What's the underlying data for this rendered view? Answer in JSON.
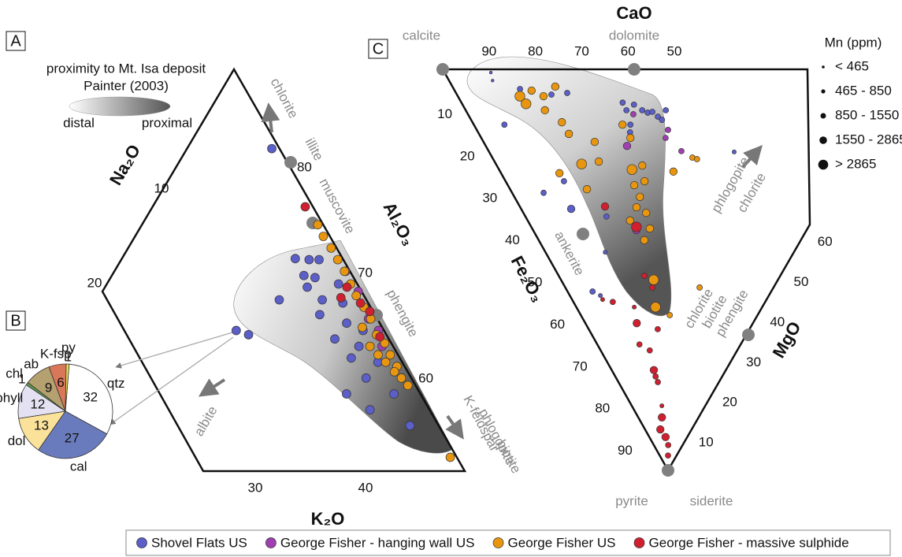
{
  "chart_data": [
    {
      "type": "ternary",
      "panel": "A",
      "axes": {
        "bottom": "K₂O",
        "left": "Na₂O",
        "right": "Al₂O₃"
      },
      "k2o_ticks": [
        30,
        40
      ],
      "na2o_ticks": [
        10,
        20
      ],
      "al2o3_ticks": [
        60,
        70,
        80
      ],
      "field": {
        "title": "proximity to Mt. Isa deposit",
        "source": "Painter (2003)",
        "low": "distal",
        "high": "proximal"
      },
      "minerals": [
        "chlorite",
        "illite",
        "muscovite",
        "phengite",
        "albite",
        "K-feldspar",
        "phlogopite",
        "biotite"
      ],
      "series": [
        {
          "name": "Shovel Flats US",
          "color": "#5b5fc7",
          "k2o": [
            17.8,
            24.6,
            25.9,
            26.8,
            27.2,
            26.9,
            24.9,
            28.8,
            30.8,
            29.2,
            32.0,
            31.6,
            33.8,
            33.9,
            36.5,
            35.0,
            39.3,
            37.8,
            42.1,
            22.3,
            23.6,
            34.1,
            26.1,
            29.6,
            36.1
          ],
          "al2o3": [
            81.5,
            71.1,
            71.0,
            71.0,
            69.3,
            68.4,
            67.2,
            67.2,
            66.9,
            65.8,
            65.0,
            63.5,
            64.3,
            61.7,
            61.3,
            58.3,
            58.3,
            56.8,
            55.3,
            64.3,
            63.9,
            62.8,
            69.5,
            68.7,
            59.8
          ]
        },
        {
          "name": "George Fisher - hanging wall US",
          "color": "#a040b0",
          "k2o": [
            29.7,
            31.7,
            33.6,
            33.8,
            35.2,
            36.2
          ],
          "al2o3": [
            69.9,
            68.0,
            66.1,
            65.4,
            64.3,
            62.8
          ]
        },
        {
          "name": "George Fisher US",
          "color": "#e8960f",
          "k2o": [
            25.2,
            26.2,
            27.4,
            28.5,
            29.6,
            30.7,
            31.7,
            32.9,
            34.0,
            35.2,
            36.3,
            37.3,
            38.4,
            39.3,
            40.2,
            35.1,
            37.2,
            38.4,
            33.6,
            36.2,
            47.1
          ],
          "al2o3": [
            74.3,
            73.2,
            72.1,
            71.0,
            69.9,
            68.7,
            67.6,
            66.5,
            65.4,
            63.9,
            63.1,
            62.0,
            60.9,
            59.8,
            59.1,
            62.8,
            61.3,
            60.4,
            64.6,
            62.0,
            52.3
          ]
        },
        {
          "name": "George Fisher - massive sulphide",
          "color": "#d02030",
          "k2o": [
            23.3,
            30.5,
            30.4,
            32.4,
            33.6,
            35.6
          ],
          "al2o3": [
            76.0,
            68.4,
            67.4,
            66.9,
            66.1,
            63.7
          ]
        }
      ]
    },
    {
      "type": "pie",
      "panel": "B",
      "categories": [
        "qtz",
        "cal",
        "dol",
        "phyll",
        "chl",
        "ab",
        "K-fsp",
        "py"
      ],
      "values": [
        32,
        27,
        13,
        12,
        1,
        9,
        6,
        1
      ],
      "colors": [
        "#ffffff",
        "#6a7bbd",
        "#fbe29a",
        "#e4e2f2",
        "#5a9a4a",
        "#b5a070",
        "#d9775a",
        "#f4e34a"
      ]
    },
    {
      "type": "ternary",
      "panel": "C",
      "axes": {
        "top": "CaO",
        "left": "Fe₂O₃",
        "right": "MgO"
      },
      "cao_ticks": [
        90,
        80,
        70,
        60,
        50
      ],
      "fe2o3_ticks": [
        10,
        20,
        30,
        40,
        50,
        60,
        70,
        80,
        90
      ],
      "mgo_ticks": [
        10,
        20,
        30,
        40,
        50,
        60
      ],
      "minerals": [
        "calcite",
        "dolomite",
        "ankerite",
        "phlogopite",
        "chlorite",
        "chlorite",
        "biotite",
        "phengite",
        "pyrite",
        "siderite"
      ],
      "size_legend": {
        "title": "Mn (ppm)",
        "labels": [
          "< 465",
          "465 - 850",
          "850 - 1550",
          "1550 - 2865",
          "> 2865"
        ],
        "bins": [
          465,
          850,
          1550,
          2865
        ]
      },
      "series": [
        {
          "color": "#5b5fc7",
          "mgo": [
            10.0,
            9.4,
            6.6,
            14.3,
            20.4,
            24.0,
            34.8,
            34.7,
            37.0,
            38.1,
            39.0,
            40.1,
            40.7,
            43.2,
            33.8,
            41.2,
            52.9,
            12.6,
            10.8,
            6.8,
            17.5,
            12.9,
            5.4,
            6.6,
            32.8
          ],
          "fe2o3": [
            0.8,
            2.8,
            13.8,
            4.9,
            6.3,
            5.9,
            8.3,
            10.2,
            8.8,
            10.2,
            10.8,
            10.6,
            11.8,
            10.2,
            13.8,
            12.6,
            20.6,
            27.9,
            34.8,
            30.8,
            36.7,
            45.6,
            55.4,
            56.4,
            15.7
          ],
          "mn": [
            300,
            300,
            1200,
            1200,
            1200,
            1200,
            1200,
            1200,
            1200,
            1200,
            1200,
            1200,
            1200,
            1200,
            1200,
            1200,
            650,
            1200,
            2000,
            1200,
            1200,
            650,
            1200,
            650,
            1200
          ]
        },
        {
          "color": "#a040b0",
          "mgo": [
            35.7,
            41.3,
            39.8,
            41.6,
            30.5,
            22.3
          ],
          "fe2o3": [
            11.2,
            15.1,
            17.1,
            20.4,
            19.1,
            40.1
          ],
          "mn": [
            1200,
            1200,
            1200,
            1200,
            2000,
            2000
          ]
        },
        {
          "color": "#e8960f",
          "mgo": [
            13.4,
            13.8,
            16.6,
            18.5,
            17.1,
            22.2,
            19.3,
            19.4,
            24.0,
            22.5,
            18.5,
            16.6,
            32.1,
            32.2,
            28.7,
            31.4,
            30.0,
            27.3,
            27.1,
            25.1,
            26.5,
            25.4,
            12.6,
            22.8,
            22.1,
            37.4,
            43.2,
            44.0,
            20.0,
            17.1,
            19.2,
            29.0
          ],
          "fe2o3": [
            6.7,
            8.6,
            5.3,
            6.7,
            10.2,
            4.3,
            13.2,
            16.1,
            18.1,
            23.0,
            23.6,
            29.9,
            13.8,
            17.1,
            25.0,
            24.0,
            27.9,
            28.9,
            31.8,
            34.4,
            35.8,
            39.7,
            25.9,
            42.6,
            37.7,
            25.5,
            22.0,
            22.4,
            52.5,
            59.3,
            61.3,
            54.4
          ],
          "mn": [
            3500,
            3500,
            2000,
            2000,
            2000,
            2000,
            2000,
            2000,
            2000,
            2000,
            3500,
            2000,
            2000,
            2000,
            3500,
            2000,
            2000,
            2000,
            2000,
            2000,
            2000,
            2000,
            2000,
            2000,
            2000,
            2000,
            1200,
            1200,
            3500,
            3500,
            1200,
            1200
          ]
        },
        {
          "color": "#d02030",
          "mgo": [
            18.4,
            22.7,
            18.5,
            18.8,
            11.1,
            14.9,
            9.1,
            10.6,
            9.1,
            8.7,
            8.5,
            6.5,
            5.1,
            3.3,
            3.5,
            3.1,
            1.8,
            8.5,
            6.6,
            12.5
          ],
          "fe2o3": [
            34.2,
            39.3,
            51.5,
            54.4,
            63.3,
            64.8,
            68.6,
            70.1,
            75.0,
            76.6,
            78.0,
            83.9,
            86.8,
            89.8,
            91.7,
            93.7,
            96.3,
            58.0,
            57.4,
            59.3
          ],
          "mn": [
            2000,
            3500,
            1200,
            1200,
            2000,
            1200,
            1200,
            1200,
            2000,
            1200,
            1200,
            650,
            2000,
            2000,
            2000,
            1200,
            1200,
            1200,
            650,
            650
          ]
        }
      ]
    }
  ]
}
